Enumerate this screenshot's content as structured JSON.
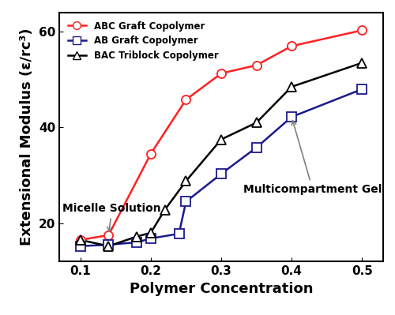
{
  "chart_data": {
    "type": "line",
    "x_label": "Polymer Concentration",
    "y_label": "Extensional Modulus (ε/rc³)",
    "xlim": [
      0.07,
      0.53
    ],
    "xticks": [
      0.1,
      0.2,
      0.3,
      0.4,
      0.5
    ],
    "ylim": [
      12,
      64
    ],
    "yticks": [
      20,
      40,
      60
    ],
    "legend": "upper left",
    "annotations": [
      {
        "text": "Micelle Solution",
        "x": 0.14,
        "y": 17.5,
        "text_x": 0.075,
        "text_y": 23
      },
      {
        "text": "Multicompartment Gel",
        "x": 0.4,
        "y": 42.2,
        "text_x": 0.43,
        "text_y": 27
      }
    ],
    "series": [
      {
        "name": "ABC Graft Copolymer",
        "color": "#ff2020",
        "marker": "o",
        "x": [
          0.1,
          0.14,
          0.2,
          0.25,
          0.3,
          0.35,
          0.4,
          0.5
        ],
        "values": [
          16.5,
          17.5,
          34.5,
          45.8,
          51.3,
          53,
          57,
          60.3
        ]
      },
      {
        "name": "AB Graft Copolymer",
        "color": "#1a1a8c",
        "marker": "s",
        "x": [
          0.1,
          0.14,
          0.18,
          0.2,
          0.24,
          0.25,
          0.3,
          0.35,
          0.4,
          0.5
        ],
        "values": [
          15.2,
          15.5,
          16,
          16.8,
          17.8,
          24.5,
          30.3,
          35.8,
          42.2,
          48
        ]
      },
      {
        "name": "BAC Triblock Copolymer",
        "color": "#000000",
        "marker": "^",
        "x": [
          0.1,
          0.14,
          0.18,
          0.2,
          0.22,
          0.25,
          0.3,
          0.35,
          0.4,
          0.5
        ],
        "values": [
          16.5,
          15.2,
          17.2,
          18,
          22.8,
          28.8,
          37.5,
          41,
          48.5,
          53.5
        ]
      }
    ]
  }
}
